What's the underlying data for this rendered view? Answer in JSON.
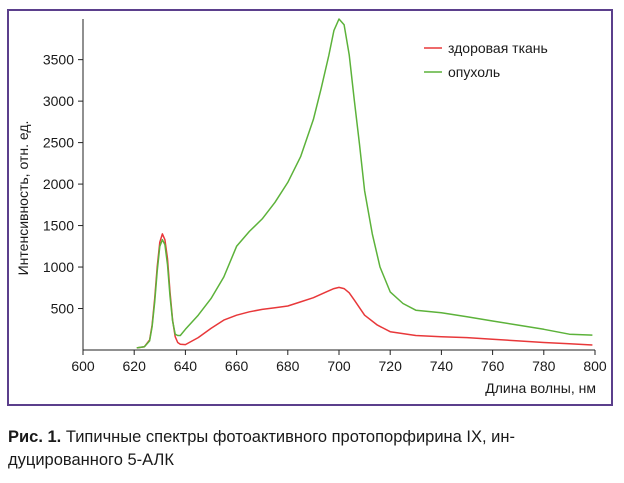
{
  "chart_data": {
    "type": "line",
    "title": "",
    "xlabel": "Длина волны, нм",
    "ylabel": "Интенсивность, отн. ед.",
    "xlim": [
      600,
      800
    ],
    "ylim": [
      0,
      4000
    ],
    "x_ticks": [
      600,
      620,
      640,
      660,
      680,
      700,
      720,
      740,
      760,
      780,
      800
    ],
    "y_ticks": [
      500,
      1000,
      1500,
      2000,
      2500,
      3000,
      3500
    ],
    "grid": false,
    "legend_position": "top-right",
    "series": [
      {
        "name": "здоровая ткань",
        "color": "#e8383a",
        "x": [
          621,
          624,
          626,
          627,
          628,
          629,
          630,
          631,
          632,
          633,
          634,
          635,
          636,
          637,
          638,
          640,
          645,
          650,
          655,
          660,
          665,
          670,
          675,
          680,
          685,
          690,
          695,
          698,
          700,
          702,
          704,
          706,
          710,
          715,
          720,
          730,
          740,
          750,
          760,
          770,
          780,
          790,
          799
        ],
        "y": [
          25,
          40,
          120,
          300,
          620,
          1000,
          1300,
          1400,
          1330,
          1100,
          700,
          360,
          160,
          90,
          70,
          65,
          150,
          260,
          360,
          420,
          460,
          490,
          510,
          530,
          580,
          630,
          700,
          740,
          755,
          740,
          690,
          600,
          420,
          300,
          220,
          175,
          160,
          150,
          130,
          110,
          90,
          75,
          60
        ]
      },
      {
        "name": "опухоль",
        "color": "#5cb23a",
        "x": [
          621,
          624,
          626,
          627,
          628,
          629,
          630,
          631,
          632,
          633,
          634,
          635,
          636,
          637,
          638,
          640,
          645,
          650,
          655,
          660,
          665,
          670,
          675,
          680,
          685,
          690,
          693,
          696,
          698,
          700,
          702,
          704,
          706,
          708,
          710,
          713,
          716,
          720,
          725,
          730,
          740,
          750,
          760,
          770,
          780,
          790,
          799
        ],
        "y": [
          25,
          40,
          110,
          280,
          580,
          950,
          1250,
          1330,
          1270,
          1030,
          650,
          350,
          190,
          175,
          175,
          250,
          420,
          620,
          880,
          1250,
          1430,
          1580,
          1780,
          2020,
          2330,
          2780,
          3150,
          3550,
          3850,
          3990,
          3920,
          3560,
          3000,
          2480,
          1920,
          1400,
          1000,
          700,
          560,
          480,
          450,
          400,
          350,
          300,
          250,
          190,
          180
        ]
      }
    ]
  },
  "caption": {
    "label": "Рис. 1.",
    "line1": " Типичные спектры фотоактивного протопорфирина IX, ин-",
    "line2": "дуцированного 5-АЛК"
  }
}
